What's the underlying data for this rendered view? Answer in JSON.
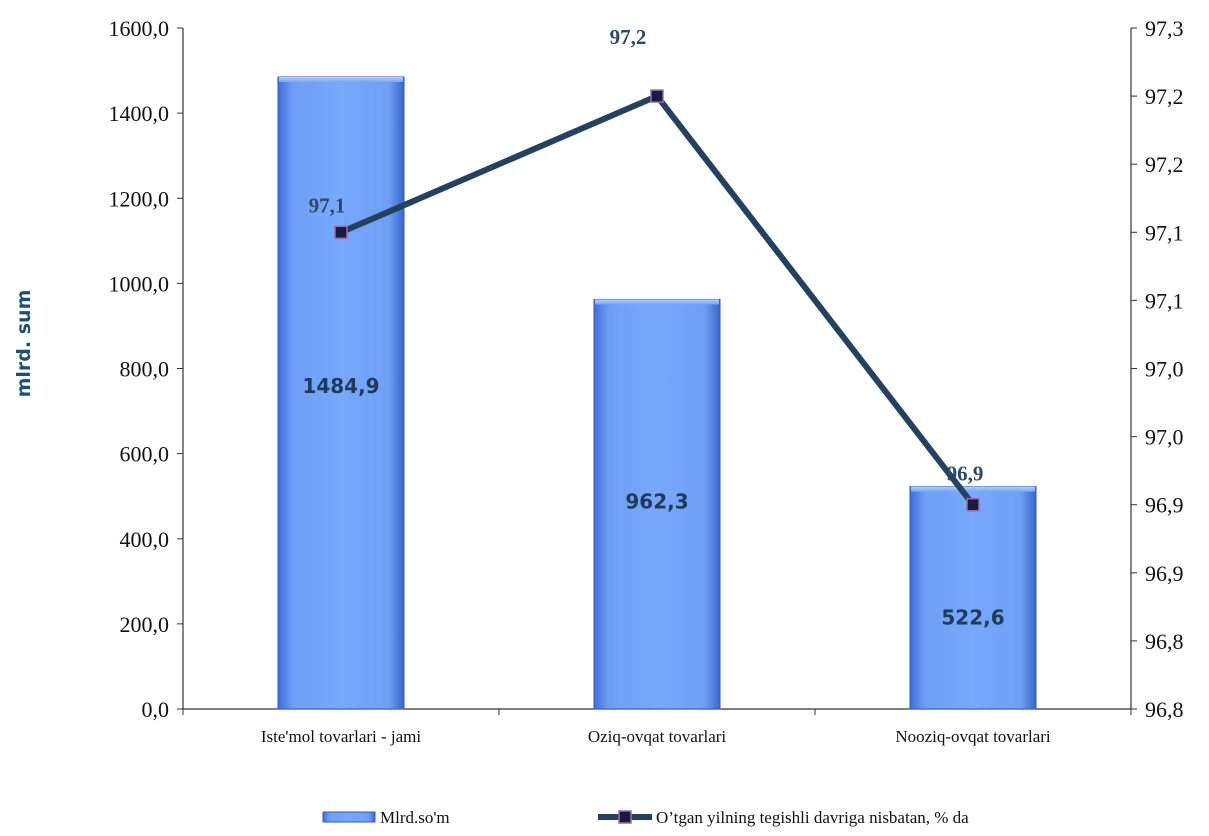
{
  "chart_data": {
    "type": "bar",
    "categories": [
      "Iste'mol tovarlari - jami",
      "Oziq-ovqat tovarlari",
      "Nooziq-ovqat tovarlari"
    ],
    "ylabel": "mlrd. sum",
    "y_left": {
      "ylim": [
        0,
        1600
      ],
      "ticks": [
        "0,0",
        "200,0",
        "400,0",
        "600,0",
        "800,0",
        "1000,0",
        "1200,0",
        "1400,0",
        "1600,0"
      ]
    },
    "y_right": {
      "ylim": [
        96.75,
        97.25
      ],
      "ticks": [
        "96,8",
        "96,8",
        "96,9",
        "96,9",
        "97,0",
        "97,0",
        "97,1",
        "97,1",
        "97,2",
        "97,2",
        "97,3"
      ]
    },
    "series": [
      {
        "name": "Mlrd.so'm",
        "type": "bar",
        "axis": "left",
        "values": [
          1484.9,
          962.3,
          522.6
        ],
        "labels": [
          "1484,9",
          "962,3",
          "522,6"
        ],
        "color": "#6b9cf5"
      },
      {
        "name": "O’tgan yilning tegishli davriga nisbatan, % da",
        "type": "line",
        "axis": "right",
        "values": [
          97.1,
          97.2,
          96.9
        ],
        "labels": [
          "97,1",
          "97,2",
          "96,9"
        ],
        "color": "#24415f",
        "marker_color": "#1a1a40"
      }
    ],
    "grid": false,
    "legend": "bottom"
  }
}
